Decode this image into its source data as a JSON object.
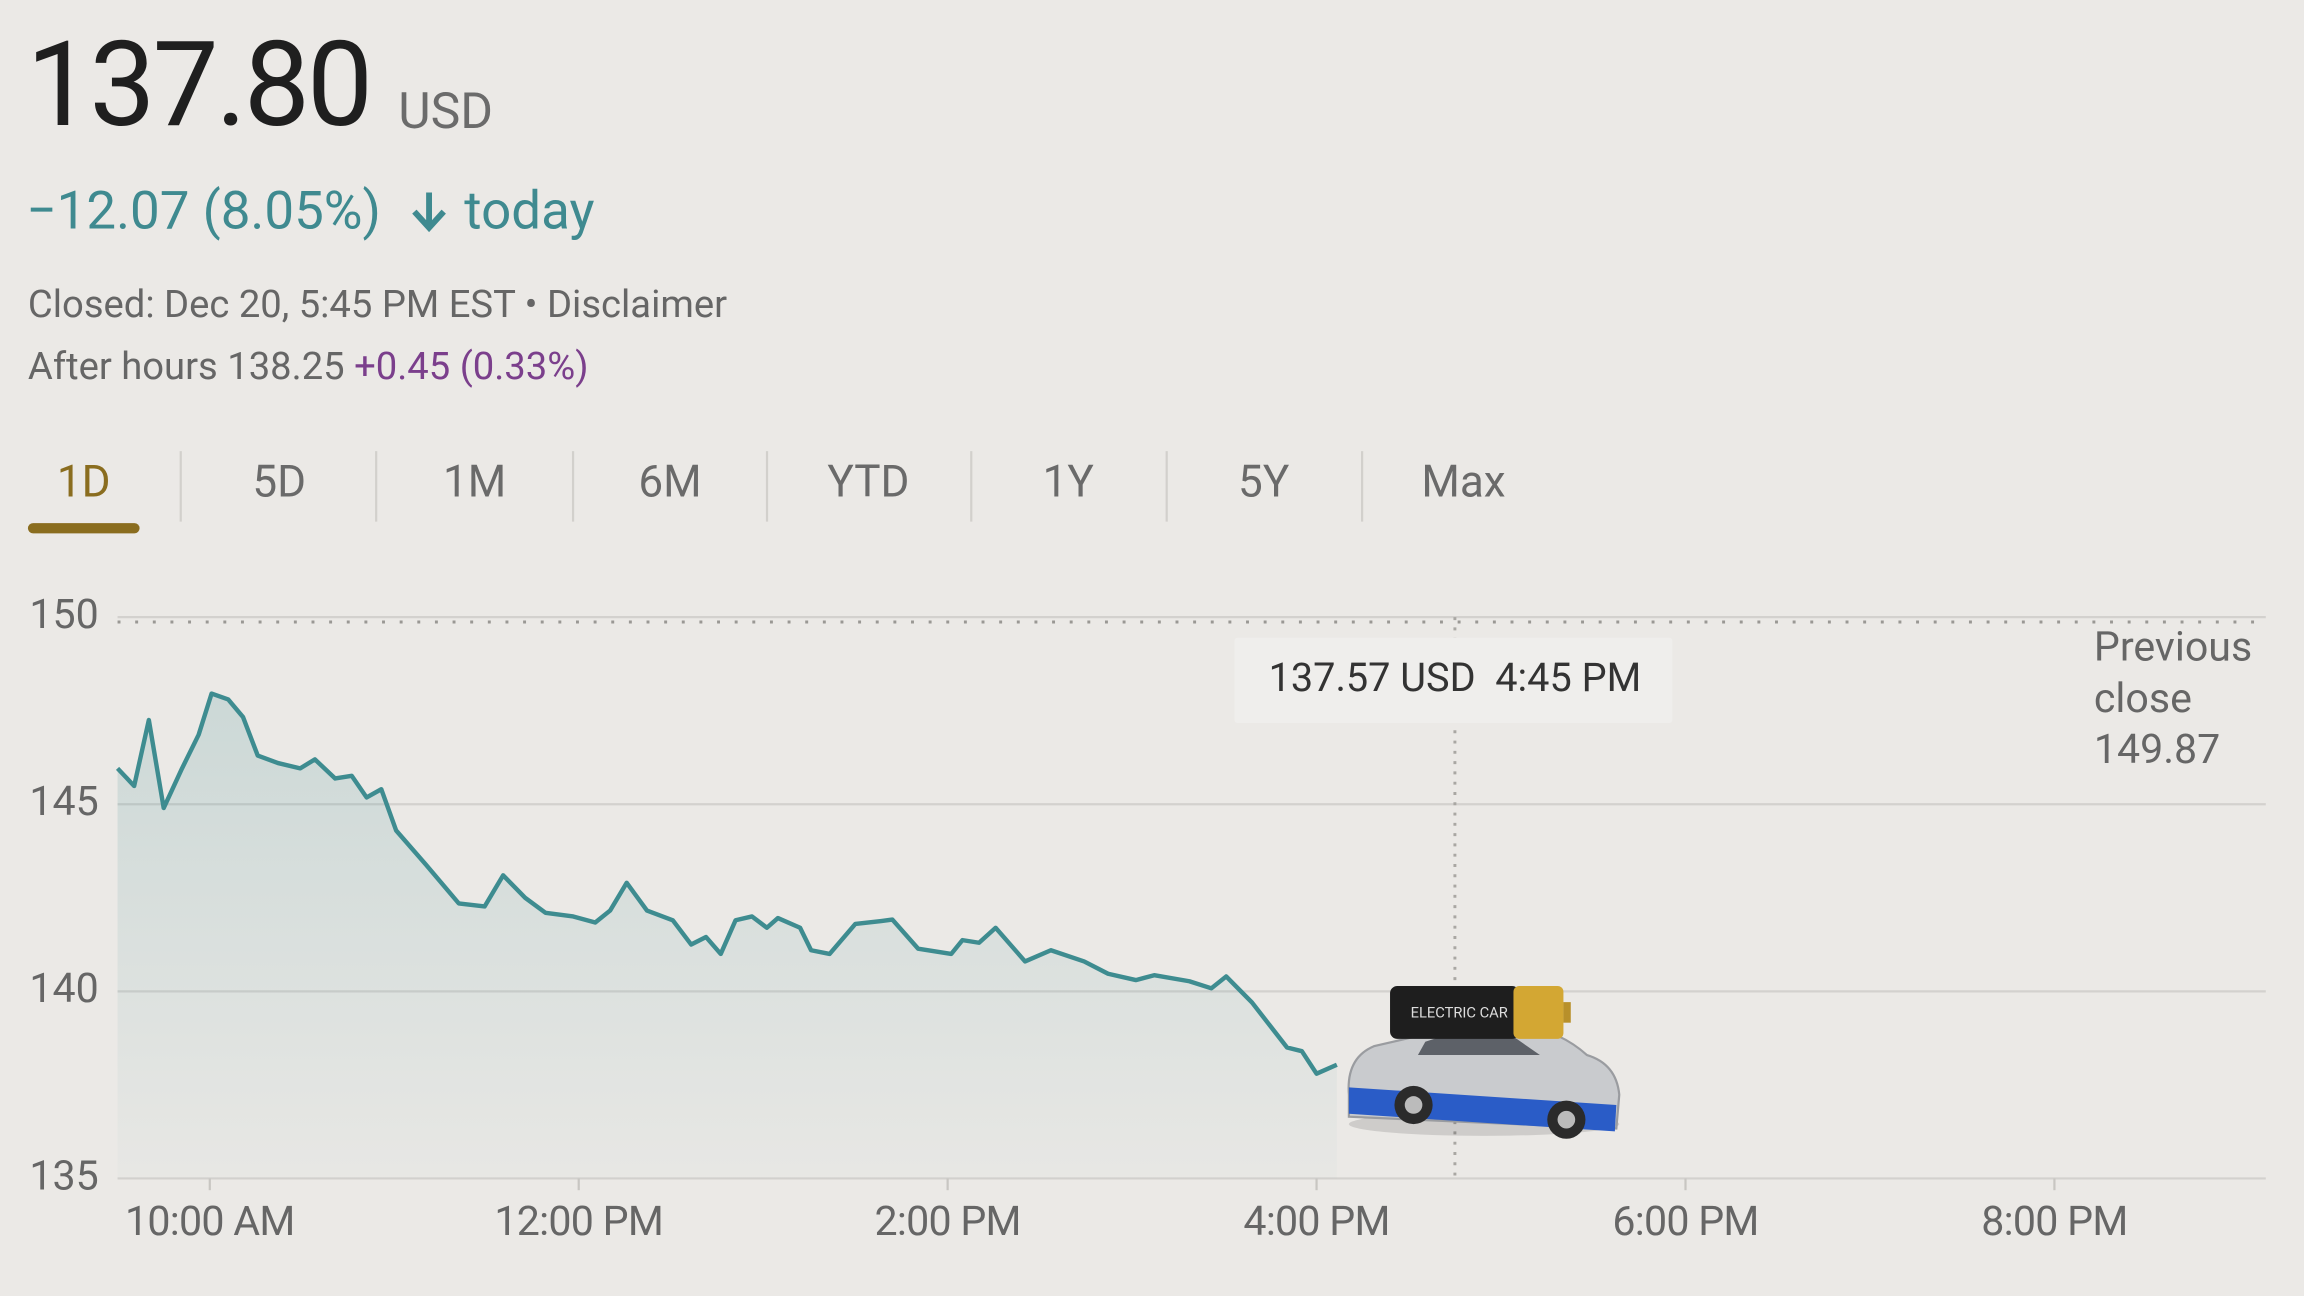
{
  "header": {
    "price": "137.80",
    "currency": "USD",
    "change": "−12.07 (8.05%)",
    "change_suffix": "today",
    "status": "Closed: Dec 20, 5:45 PM EST • Disclaimer",
    "after_hours": "After hours 138.25",
    "after_hours_change": "+0.45 (0.33%)"
  },
  "tabs": [
    "1D",
    "5D",
    "1M",
    "6M",
    "YTD",
    "1Y",
    "5Y",
    "Max"
  ],
  "selected_tab": 0,
  "chart_data": {
    "type": "line",
    "xlim": [
      9.5,
      21.13
    ],
    "ylim": [
      135,
      150
    ],
    "yticks": [
      135,
      140,
      145,
      150
    ],
    "xticks": [
      {
        "value": 10,
        "label": "10:00 AM"
      },
      {
        "value": 12,
        "label": "12:00 PM"
      },
      {
        "value": 14,
        "label": "2:00 PM"
      },
      {
        "value": 16,
        "label": "4:00 PM"
      },
      {
        "value": 18,
        "label": "6:00 PM"
      },
      {
        "value": 20,
        "label": "8:00 PM"
      }
    ],
    "grid": true,
    "series": [
      {
        "color": "#3e8c90",
        "x": [
          9.5,
          9.59,
          9.67,
          9.75,
          9.85,
          9.94,
          10.01,
          10.1,
          10.18,
          10.26,
          10.37,
          10.49,
          10.57,
          10.68,
          10.77,
          10.85,
          10.93,
          11.01,
          11.17,
          11.35,
          11.49,
          11.59,
          11.71,
          11.82,
          11.97,
          12.09,
          12.17,
          12.26,
          12.37,
          12.51,
          12.61,
          12.69,
          12.77,
          12.85,
          12.94,
          13.02,
          13.08,
          13.2,
          13.26,
          13.36,
          13.5,
          13.64,
          13.7,
          13.84,
          14.02,
          14.08,
          14.17,
          14.26,
          14.42,
          14.56,
          14.74,
          14.87,
          15.02,
          15.12,
          15.31,
          15.43,
          15.51,
          15.65,
          15.84,
          15.92,
          16.0,
          16.11
        ],
        "values": [
          145.96,
          145.49,
          147.25,
          144.9,
          145.96,
          146.86,
          147.96,
          147.8,
          147.33,
          146.3,
          146.1,
          145.96,
          146.2,
          145.69,
          145.76,
          145.18,
          145.4,
          144.3,
          143.4,
          142.35,
          142.27,
          143.1,
          142.5,
          142.1,
          142.0,
          141.84,
          142.16,
          142.9,
          142.16,
          141.9,
          141.25,
          141.45,
          141.0,
          141.9,
          142.0,
          141.7,
          141.96,
          141.7,
          141.1,
          141.0,
          141.8,
          141.88,
          141.92,
          141.14,
          141.0,
          141.37,
          141.3,
          141.7,
          140.8,
          141.1,
          140.8,
          140.47,
          140.3,
          140.43,
          140.27,
          140.08,
          140.4,
          139.7,
          138.5,
          138.4,
          137.8,
          138.04
        ]
      }
    ],
    "previous_close_label": [
      "Previous",
      "close"
    ],
    "previous_close": 149.87,
    "hover_x": 16.75,
    "tooltip": "137.57 USD  4:45 PM",
    "car_label": "ELECTRIC CAR"
  }
}
